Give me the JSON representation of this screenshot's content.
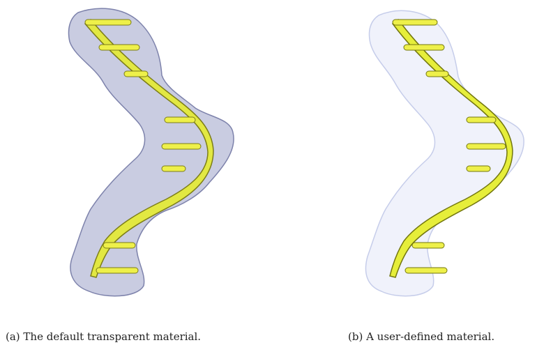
{
  "figure": {
    "panels": [
      {
        "id": "a",
        "caption": "(a) The default transparent material.",
        "surface_color": "#9da2c8",
        "surface_opacity": 0.55,
        "surface_stroke": "#7d82ab",
        "ribbon_color": "#e2e842",
        "ribbon_shadow": "#7c7d18",
        "base_color": "#eef04a"
      },
      {
        "id": "b",
        "caption": "(b) A user-defined material.",
        "surface_color": "#dde2f6",
        "surface_opacity": 0.45,
        "surface_stroke": "#c6cdea",
        "ribbon_color": "#e6ee3a",
        "ribbon_shadow": "#72760e",
        "base_color": "#eef04a"
      }
    ]
  }
}
